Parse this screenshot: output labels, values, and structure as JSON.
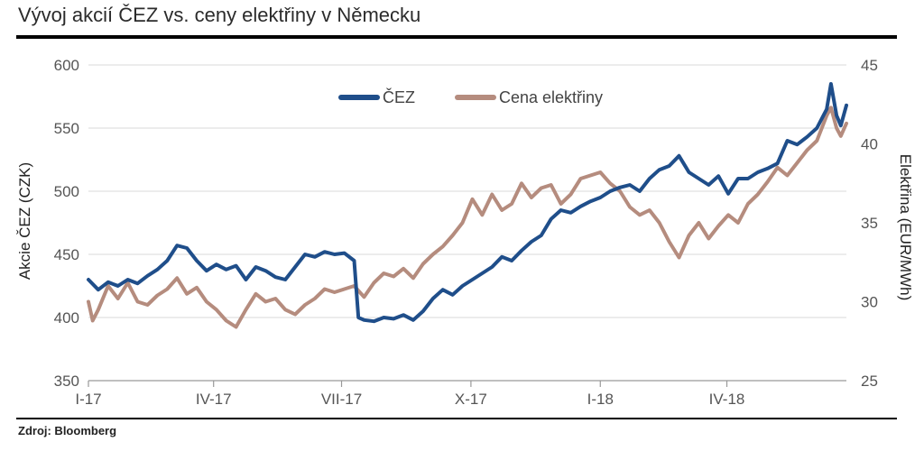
{
  "chart_data": {
    "type": "line",
    "title": "Vývoj akcií ČEZ vs. ceny elektřiny v Německu",
    "source": "Zdroj: Bloomberg",
    "x_tick_labels": [
      "I-17",
      "IV-17",
      "VII-17",
      "X-17",
      "I-18",
      "IV-18"
    ],
    "x_tick_dates": [
      "2017-01-02",
      "2017-04-01",
      "2017-07-01",
      "2017-10-01",
      "2018-01-01",
      "2018-04-01"
    ],
    "xlim": [
      "2017-01-02",
      "2018-06-25"
    ],
    "y_left": {
      "label": "Akcie ČEZ (CZK)",
      "lim": [
        350,
        600
      ],
      "ticks": [
        350,
        400,
        450,
        500,
        550,
        600
      ]
    },
    "y_right": {
      "label": "Elektřina (EUR/MWh)",
      "lim": [
        25,
        45
      ],
      "ticks": [
        25,
        30,
        35,
        40,
        45
      ]
    },
    "grid": true,
    "legend_position": "top-center",
    "series": [
      {
        "name": "ČEZ",
        "axis": "left",
        "color": "#1f4e8a",
        "points": [
          [
            "2017-01-02",
            430
          ],
          [
            "2017-01-09",
            422
          ],
          [
            "2017-01-16",
            428
          ],
          [
            "2017-01-23",
            425
          ],
          [
            "2017-01-30",
            430
          ],
          [
            "2017-02-06",
            427
          ],
          [
            "2017-02-13",
            433
          ],
          [
            "2017-02-20",
            438
          ],
          [
            "2017-02-27",
            445
          ],
          [
            "2017-03-06",
            457
          ],
          [
            "2017-03-13",
            455
          ],
          [
            "2017-03-20",
            445
          ],
          [
            "2017-03-27",
            437
          ],
          [
            "2017-04-03",
            442
          ],
          [
            "2017-04-10",
            438
          ],
          [
            "2017-04-17",
            441
          ],
          [
            "2017-04-24",
            430
          ],
          [
            "2017-05-01",
            440
          ],
          [
            "2017-05-08",
            437
          ],
          [
            "2017-05-15",
            432
          ],
          [
            "2017-05-22",
            430
          ],
          [
            "2017-05-29",
            440
          ],
          [
            "2017-06-05",
            450
          ],
          [
            "2017-06-12",
            448
          ],
          [
            "2017-06-19",
            452
          ],
          [
            "2017-06-26",
            450
          ],
          [
            "2017-07-03",
            451
          ],
          [
            "2017-07-10",
            445
          ],
          [
            "2017-07-13",
            400
          ],
          [
            "2017-07-17",
            398
          ],
          [
            "2017-07-24",
            397
          ],
          [
            "2017-07-31",
            400
          ],
          [
            "2017-08-07",
            399
          ],
          [
            "2017-08-14",
            402
          ],
          [
            "2017-08-21",
            398
          ],
          [
            "2017-08-28",
            405
          ],
          [
            "2017-09-04",
            415
          ],
          [
            "2017-09-11",
            422
          ],
          [
            "2017-09-18",
            418
          ],
          [
            "2017-09-25",
            425
          ],
          [
            "2017-10-02",
            430
          ],
          [
            "2017-10-09",
            435
          ],
          [
            "2017-10-16",
            440
          ],
          [
            "2017-10-23",
            448
          ],
          [
            "2017-10-30",
            445
          ],
          [
            "2017-11-06",
            453
          ],
          [
            "2017-11-13",
            460
          ],
          [
            "2017-11-20",
            465
          ],
          [
            "2017-11-27",
            478
          ],
          [
            "2017-12-04",
            485
          ],
          [
            "2017-12-11",
            483
          ],
          [
            "2017-12-18",
            488
          ],
          [
            "2017-12-25",
            492
          ],
          [
            "2018-01-01",
            495
          ],
          [
            "2018-01-08",
            500
          ],
          [
            "2018-01-15",
            503
          ],
          [
            "2018-01-22",
            505
          ],
          [
            "2018-01-29",
            500
          ],
          [
            "2018-02-05",
            510
          ],
          [
            "2018-02-12",
            517
          ],
          [
            "2018-02-19",
            520
          ],
          [
            "2018-02-26",
            528
          ],
          [
            "2018-03-05",
            515
          ],
          [
            "2018-03-12",
            510
          ],
          [
            "2018-03-19",
            505
          ],
          [
            "2018-03-26",
            512
          ],
          [
            "2018-04-02",
            498
          ],
          [
            "2018-04-09",
            510
          ],
          [
            "2018-04-16",
            510
          ],
          [
            "2018-04-23",
            515
          ],
          [
            "2018-04-30",
            518
          ],
          [
            "2018-05-07",
            522
          ],
          [
            "2018-05-14",
            540
          ],
          [
            "2018-05-21",
            537
          ],
          [
            "2018-05-28",
            543
          ],
          [
            "2018-06-04",
            550
          ],
          [
            "2018-06-11",
            565
          ],
          [
            "2018-06-14",
            585
          ],
          [
            "2018-06-18",
            560
          ],
          [
            "2018-06-21",
            552
          ],
          [
            "2018-06-25",
            568
          ]
        ]
      },
      {
        "name": "Cena elektřiny",
        "axis": "right",
        "color": "#b58c7e",
        "points": [
          [
            "2017-01-02",
            30.0
          ],
          [
            "2017-01-05",
            28.8
          ],
          [
            "2017-01-09",
            29.5
          ],
          [
            "2017-01-16",
            31.0
          ],
          [
            "2017-01-23",
            30.2
          ],
          [
            "2017-01-30",
            31.2
          ],
          [
            "2017-02-06",
            30.0
          ],
          [
            "2017-02-13",
            29.8
          ],
          [
            "2017-02-20",
            30.4
          ],
          [
            "2017-02-27",
            30.8
          ],
          [
            "2017-03-06",
            31.5
          ],
          [
            "2017-03-13",
            30.5
          ],
          [
            "2017-03-20",
            30.9
          ],
          [
            "2017-03-27",
            30.0
          ],
          [
            "2017-04-03",
            29.5
          ],
          [
            "2017-04-10",
            28.8
          ],
          [
            "2017-04-17",
            28.4
          ],
          [
            "2017-04-24",
            29.5
          ],
          [
            "2017-05-01",
            30.5
          ],
          [
            "2017-05-08",
            30.0
          ],
          [
            "2017-05-15",
            30.2
          ],
          [
            "2017-05-22",
            29.5
          ],
          [
            "2017-05-29",
            29.2
          ],
          [
            "2017-06-05",
            29.8
          ],
          [
            "2017-06-12",
            30.2
          ],
          [
            "2017-06-19",
            30.8
          ],
          [
            "2017-06-26",
            30.6
          ],
          [
            "2017-07-03",
            30.8
          ],
          [
            "2017-07-10",
            31.0
          ],
          [
            "2017-07-17",
            30.3
          ],
          [
            "2017-07-24",
            31.2
          ],
          [
            "2017-07-31",
            31.8
          ],
          [
            "2017-08-07",
            31.6
          ],
          [
            "2017-08-14",
            32.1
          ],
          [
            "2017-08-21",
            31.5
          ],
          [
            "2017-08-28",
            32.4
          ],
          [
            "2017-09-04",
            33.0
          ],
          [
            "2017-09-11",
            33.5
          ],
          [
            "2017-09-18",
            34.2
          ],
          [
            "2017-09-25",
            35.0
          ],
          [
            "2017-10-02",
            36.5
          ],
          [
            "2017-10-09",
            35.5
          ],
          [
            "2017-10-16",
            36.8
          ],
          [
            "2017-10-23",
            35.8
          ],
          [
            "2017-10-30",
            36.2
          ],
          [
            "2017-11-06",
            37.5
          ],
          [
            "2017-11-13",
            36.6
          ],
          [
            "2017-11-20",
            37.2
          ],
          [
            "2017-11-27",
            37.4
          ],
          [
            "2017-12-04",
            36.2
          ],
          [
            "2017-12-11",
            36.8
          ],
          [
            "2017-12-18",
            37.8
          ],
          [
            "2017-12-25",
            38.0
          ],
          [
            "2018-01-01",
            38.2
          ],
          [
            "2018-01-08",
            37.5
          ],
          [
            "2018-01-15",
            37.0
          ],
          [
            "2018-01-22",
            36.0
          ],
          [
            "2018-01-29",
            35.5
          ],
          [
            "2018-02-05",
            35.8
          ],
          [
            "2018-02-12",
            35.0
          ],
          [
            "2018-02-19",
            33.8
          ],
          [
            "2018-02-26",
            32.8
          ],
          [
            "2018-03-05",
            34.2
          ],
          [
            "2018-03-12",
            35.0
          ],
          [
            "2018-03-19",
            34.0
          ],
          [
            "2018-03-26",
            34.8
          ],
          [
            "2018-04-02",
            35.5
          ],
          [
            "2018-04-09",
            35.0
          ],
          [
            "2018-04-16",
            36.2
          ],
          [
            "2018-04-23",
            36.8
          ],
          [
            "2018-04-30",
            37.6
          ],
          [
            "2018-05-07",
            38.5
          ],
          [
            "2018-05-14",
            38.0
          ],
          [
            "2018-05-21",
            38.8
          ],
          [
            "2018-05-28",
            39.6
          ],
          [
            "2018-06-04",
            40.2
          ],
          [
            "2018-06-11",
            41.8
          ],
          [
            "2018-06-14",
            42.3
          ],
          [
            "2018-06-18",
            41.0
          ],
          [
            "2018-06-21",
            40.5
          ],
          [
            "2018-06-25",
            41.3
          ]
        ]
      }
    ]
  }
}
